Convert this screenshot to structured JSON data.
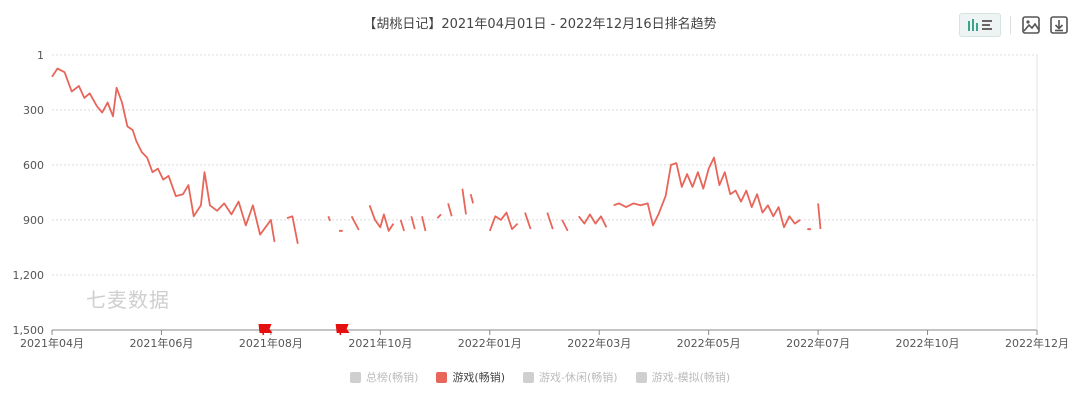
{
  "header": {
    "title": "【胡桃日记】2021年04月01日 - 2022年12月16日排名趋势"
  },
  "toolbar": {
    "icons": [
      "bar-line-toggle-icon",
      "image-icon",
      "download-icon"
    ]
  },
  "watermark": "七麦数据",
  "legend": [
    {
      "label": "总榜(畅销)",
      "active": false
    },
    {
      "label": "游戏(畅销)",
      "active": true
    },
    {
      "label": "游戏-休闲(畅销)",
      "active": false
    },
    {
      "label": "游戏-模拟(畅销)",
      "active": false
    }
  ],
  "colors": {
    "series": "#e8655a",
    "grid": "#dcdcdc",
    "flag": "#e41010"
  },
  "chart_data": {
    "type": "line",
    "title": "【胡桃日记】2021年04月01日 - 2022年12月16日排名趋势",
    "y_axis": {
      "reversed": true,
      "ylim": [
        1,
        1500
      ],
      "ticks": [
        1,
        300,
        600,
        900,
        1200,
        1500
      ],
      "tick_labels": [
        "1",
        "300",
        "600",
        "900",
        "1,200",
        "1,500"
      ]
    },
    "x_axis": {
      "ticks": [
        "2021-04-01",
        "2021-06-01",
        "2021-08-01",
        "2021-10-01",
        "2022-01-01",
        "2022-03-01",
        "2022-05-01",
        "2022-07-01",
        "2022-10-01",
        "2022-12-01"
      ],
      "tick_labels": [
        "2021年04月",
        "2021年06月",
        "2021年08月",
        "2021年10月",
        "2022年01月",
        "2022年03月",
        "2022年05月",
        "2022年07月",
        "2022年10月",
        "2022年12月"
      ]
    },
    "grid": "horizontal dashed",
    "series": [
      {
        "name": "游戏(畅销)",
        "segments": [
          [
            [
              "2021-04-01",
              120
            ],
            [
              "2021-04-04",
              75
            ],
            [
              "2021-04-08",
              95
            ],
            [
              "2021-04-12",
              200
            ],
            [
              "2021-04-16",
              170
            ],
            [
              "2021-04-19",
              235
            ],
            [
              "2021-04-22",
              210
            ],
            [
              "2021-04-26",
              280
            ],
            [
              "2021-04-29",
              315
            ],
            [
              "2021-05-02",
              260
            ],
            [
              "2021-05-05",
              335
            ],
            [
              "2021-05-07",
              180
            ],
            [
              "2021-05-10",
              260
            ],
            [
              "2021-05-13",
              390
            ],
            [
              "2021-05-16",
              410
            ],
            [
              "2021-05-18",
              470
            ],
            [
              "2021-05-21",
              530
            ],
            [
              "2021-05-24",
              560
            ],
            [
              "2021-05-27",
              640
            ],
            [
              "2021-05-30",
              620
            ],
            [
              "2021-06-02",
              680
            ],
            [
              "2021-06-05",
              660
            ],
            [
              "2021-06-09",
              770
            ],
            [
              "2021-06-13",
              760
            ],
            [
              "2021-06-16",
              710
            ],
            [
              "2021-06-19",
              880
            ],
            [
              "2021-06-23",
              820
            ],
            [
              "2021-06-25",
              640
            ],
            [
              "2021-06-28",
              820
            ],
            [
              "2021-07-02",
              850
            ],
            [
              "2021-07-06",
              810
            ],
            [
              "2021-07-10",
              870
            ],
            [
              "2021-07-14",
              800
            ],
            [
              "2021-07-18",
              930
            ],
            [
              "2021-07-22",
              820
            ],
            [
              "2021-07-26",
              980
            ],
            [
              "2021-07-29",
              940
            ],
            [
              "2021-08-01",
              900
            ],
            [
              "2021-08-03",
              1020
            ]
          ],
          [
            [
              "2021-08-10",
              890
            ],
            [
              "2021-08-13",
              880
            ],
            [
              "2021-08-16",
              1030
            ]
          ],
          [
            [
              "2021-09-02",
              880
            ],
            [
              "2021-09-03",
              905
            ]
          ],
          [
            [
              "2021-09-09",
              960
            ]
          ],
          [
            [
              "2021-09-15",
              880
            ],
            [
              "2021-09-19",
              955
            ]
          ],
          [
            [
              "2021-09-25",
              820
            ],
            [
              "2021-09-28",
              900
            ],
            [
              "2021-10-01",
              940
            ],
            [
              "2021-10-04",
              870
            ],
            [
              "2021-10-08",
              960
            ],
            [
              "2021-10-12",
              920
            ]
          ],
          [
            [
              "2021-10-18",
              900
            ],
            [
              "2021-10-21",
              960
            ]
          ],
          [
            [
              "2021-10-27",
              880
            ],
            [
              "2021-10-30",
              950
            ]
          ],
          [
            [
              "2021-11-05",
              880
            ],
            [
              "2021-11-08",
              960
            ]
          ],
          [
            [
              "2021-11-18",
              890
            ],
            [
              "2021-11-21",
              870
            ]
          ],
          [
            [
              "2021-11-27",
              810
            ],
            [
              "2021-11-30",
              880
            ]
          ],
          [
            [
              "2021-12-09",
              730
            ],
            [
              "2021-12-12",
              870
            ]
          ],
          [
            [
              "2021-12-16",
              760
            ],
            [
              "2021-12-18",
              810
            ]
          ],
          [
            [
              "2022-01-01",
              960
            ],
            [
              "2022-01-04",
              880
            ],
            [
              "2022-01-07",
              900
            ],
            [
              "2022-01-10",
              860
            ],
            [
              "2022-01-13",
              950
            ],
            [
              "2022-01-16",
              920
            ]
          ],
          [
            [
              "2022-01-20",
              860
            ],
            [
              "2022-01-23",
              950
            ]
          ],
          [
            [
              "2022-02-01",
              860
            ],
            [
              "2022-02-04",
              950
            ]
          ],
          [
            [
              "2022-02-09",
              900
            ],
            [
              "2022-02-12",
              960
            ]
          ],
          [
            [
              "2022-02-18",
              880
            ],
            [
              "2022-02-21",
              920
            ],
            [
              "2022-02-24",
              870
            ],
            [
              "2022-02-27",
              920
            ],
            [
              "2022-03-02",
              880
            ],
            [
              "2022-03-05",
              940
            ]
          ],
          [
            [
              "2022-03-09",
              820
            ],
            [
              "2022-03-12",
              810
            ],
            [
              "2022-03-16",
              830
            ],
            [
              "2022-03-20",
              810
            ],
            [
              "2022-03-24",
              820
            ],
            [
              "2022-03-28",
              810
            ],
            [
              "2022-03-31",
              930
            ],
            [
              "2022-04-03",
              870
            ],
            [
              "2022-04-07",
              770
            ],
            [
              "2022-04-10",
              600
            ],
            [
              "2022-04-13",
              590
            ],
            [
              "2022-04-16",
              720
            ],
            [
              "2022-04-19",
              650
            ],
            [
              "2022-04-22",
              720
            ],
            [
              "2022-04-25",
              640
            ],
            [
              "2022-04-28",
              730
            ],
            [
              "2022-05-01",
              620
            ],
            [
              "2022-05-04",
              560
            ],
            [
              "2022-05-07",
              710
            ],
            [
              "2022-05-10",
              640
            ],
            [
              "2022-05-13",
              760
            ],
            [
              "2022-05-16",
              740
            ],
            [
              "2022-05-19",
              800
            ],
            [
              "2022-05-22",
              740
            ],
            [
              "2022-05-25",
              830
            ],
            [
              "2022-05-28",
              760
            ],
            [
              "2022-05-31",
              860
            ],
            [
              "2022-06-03",
              820
            ],
            [
              "2022-06-06",
              880
            ],
            [
              "2022-06-09",
              830
            ],
            [
              "2022-06-12",
              940
            ],
            [
              "2022-06-15",
              880
            ],
            [
              "2022-06-18",
              920
            ],
            [
              "2022-06-21",
              900
            ]
          ],
          [
            [
              "2022-06-26",
              950
            ]
          ],
          [
            [
              "2022-07-01",
              810
            ],
            [
              "2022-07-03",
              950
            ]
          ]
        ]
      }
    ],
    "markers": [
      {
        "type": "flag",
        "x": "2021-07-29"
      },
      {
        "type": "flag",
        "x": "2021-09-10"
      }
    ]
  }
}
